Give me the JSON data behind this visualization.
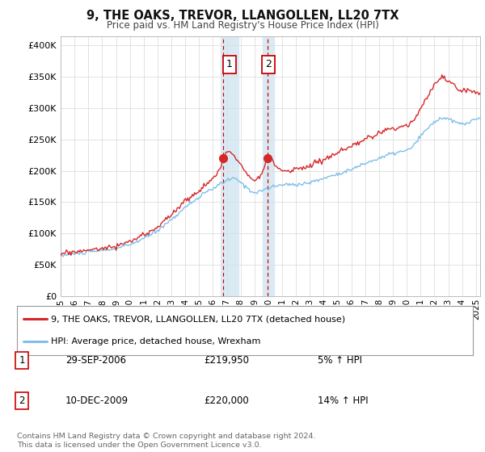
{
  "title": "9, THE OAKS, TREVOR, LLANGOLLEN, LL20 7TX",
  "subtitle": "Price paid vs. HM Land Registry's House Price Index (HPI)",
  "ylabel_ticks": [
    "£0",
    "£50K",
    "£100K",
    "£150K",
    "£200K",
    "£250K",
    "£300K",
    "£350K",
    "£400K"
  ],
  "ytick_vals": [
    0,
    50000,
    100000,
    150000,
    200000,
    250000,
    300000,
    350000,
    400000
  ],
  "ylim": [
    0,
    415000
  ],
  "xlim_start": 1995.0,
  "xlim_end": 2025.3,
  "transaction1_x": 2006.75,
  "transaction1_y": 219950,
  "transaction2_x": 2009.92,
  "transaction2_y": 220000,
  "shade_x1_start": 2006.58,
  "shade_x1_end": 2007.83,
  "shade_x2_start": 2009.58,
  "shade_x2_end": 2010.42,
  "shade_color": "#daeaf5",
  "line_color_hpi": "#7fbfe8",
  "line_color_price": "#d62728",
  "legend_label_price": "9, THE OAKS, TREVOR, LLANGOLLEN, LL20 7TX (detached house)",
  "legend_label_hpi": "HPI: Average price, detached house, Wrexham",
  "note1_date": "29-SEP-2006",
  "note1_price": "£219,950",
  "note1_hpi": "5% ↑ HPI",
  "note2_date": "10-DEC-2009",
  "note2_price": "£220,000",
  "note2_hpi": "14% ↑ HPI",
  "footer": "Contains HM Land Registry data © Crown copyright and database right 2024.\nThis data is licensed under the Open Government Licence v3.0.",
  "bg_color": "#ffffff",
  "plot_bg_color": "#ffffff",
  "grid_color": "#dddddd",
  "outer_bg": "#f2f2f2"
}
